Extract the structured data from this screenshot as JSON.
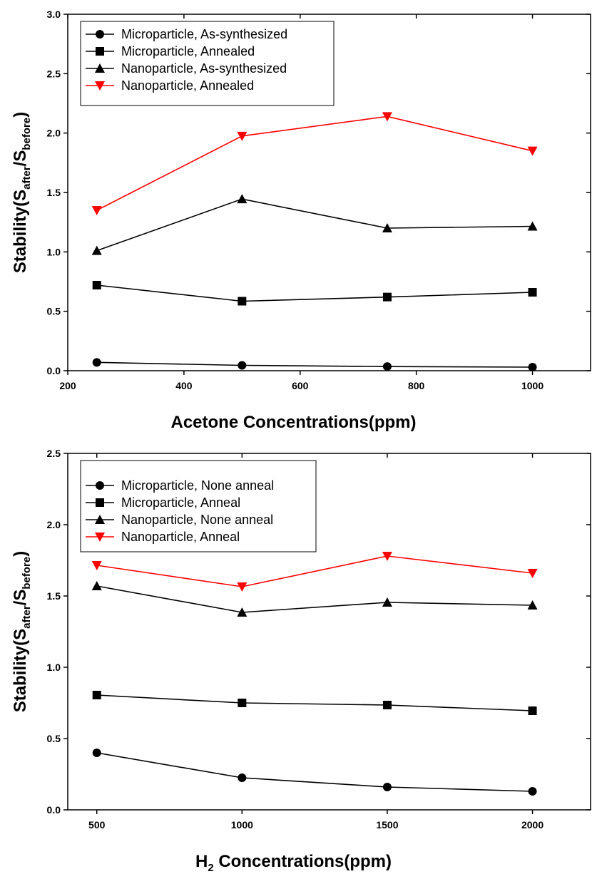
{
  "chart_data": [
    {
      "type": "line",
      "xlabel": "Acetone Concentrations(ppm)",
      "ylabel": {
        "main": "Stability(S",
        "sub1": "after",
        "mid": "/S",
        "sub2": "before",
        "end": ")"
      },
      "xlim": [
        200,
        1100
      ],
      "ylim": [
        0,
        3.0
      ],
      "xticks": [
        "200",
        "400",
        "600",
        "800",
        "1000"
      ],
      "yticks": [
        "0.0",
        "0.5",
        "1.0",
        "1.5",
        "2.0",
        "2.5",
        "3.0"
      ],
      "legend_position": "top-left",
      "series": [
        {
          "name": "Microparticle, As-synthesized",
          "marker": "circle",
          "color": "#000000",
          "x": [
            250,
            500,
            750,
            1000
          ],
          "y": [
            0.07,
            0.045,
            0.035,
            0.03
          ]
        },
        {
          "name": "Microparticle, Annealed",
          "marker": "square",
          "color": "#000000",
          "x": [
            250,
            500,
            750,
            1000
          ],
          "y": [
            0.72,
            0.585,
            0.62,
            0.66
          ]
        },
        {
          "name": "Nanoparticle, As-synthesized",
          "marker": "triangle-up",
          "color": "#000000",
          "x": [
            250,
            500,
            750,
            1000
          ],
          "y": [
            1.01,
            1.445,
            1.2,
            1.215
          ]
        },
        {
          "name": "Nanoparticle, Annealed",
          "marker": "triangle-down",
          "color": "#ff0000",
          "x": [
            250,
            500,
            750,
            1000
          ],
          "y": [
            1.35,
            1.975,
            2.14,
            1.85
          ]
        }
      ]
    },
    {
      "type": "line",
      "xlabel": {
        "main": "H",
        "sub": "2",
        "rest": " Concentrations(ppm)"
      },
      "ylabel": {
        "main": "Stability(S",
        "sub1": "after",
        "mid": "/S",
        "sub2": "before",
        "end": ")"
      },
      "xlim": [
        400,
        2200
      ],
      "ylim": [
        0,
        2.5
      ],
      "xticks": [
        "500",
        "1000",
        "1500",
        "2000"
      ],
      "yticks": [
        "0.0",
        "0.5",
        "1.0",
        "1.5",
        "2.0",
        "2.5"
      ],
      "legend_position": "top-left",
      "series": [
        {
          "name": "Microparticle, None anneal",
          "marker": "circle",
          "color": "#000000",
          "x": [
            500,
            1000,
            1500,
            2000
          ],
          "y": [
            0.4,
            0.225,
            0.16,
            0.13
          ]
        },
        {
          "name": "Microparticle, Anneal",
          "marker": "square",
          "color": "#000000",
          "x": [
            500,
            1000,
            1500,
            2000
          ],
          "y": [
            0.805,
            0.75,
            0.735,
            0.695
          ]
        },
        {
          "name": "Nanoparticle, None anneal",
          "marker": "triangle-up",
          "color": "#000000",
          "x": [
            500,
            1000,
            1500,
            2000
          ],
          "y": [
            1.57,
            1.385,
            1.455,
            1.435
          ]
        },
        {
          "name": "Nanoparticle, Anneal",
          "marker": "triangle-down",
          "color": "#ff0000",
          "x": [
            500,
            1000,
            1500,
            2000
          ],
          "y": [
            1.715,
            1.565,
            1.78,
            1.66
          ]
        }
      ]
    }
  ]
}
